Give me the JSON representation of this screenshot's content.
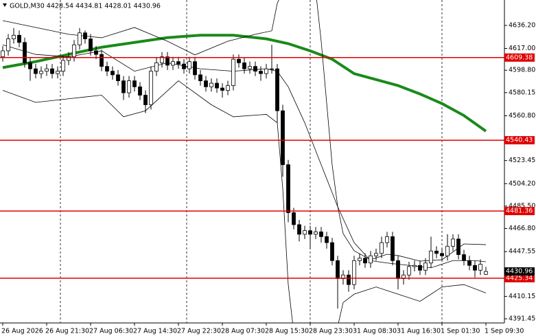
{
  "chart_data": {
    "type": "candlestick",
    "title": "GOLD,M30  4428.54 4434.81 4428.01 4430.96",
    "categories": [
      "26 Aug 2026",
      null,
      null,
      null,
      null,
      null,
      null,
      null,
      "26 Aug 21:30",
      null,
      null,
      null,
      null,
      null,
      null,
      null,
      "27 Aug 06:30",
      null,
      null,
      null,
      null,
      null,
      null,
      null,
      "27 Aug 14:30",
      null,
      null,
      null,
      null,
      null,
      null,
      null,
      "27 Aug 22:30",
      null,
      null,
      null,
      null,
      null,
      null,
      null,
      "28 Aug 07:30",
      null,
      null,
      null,
      null,
      null,
      null,
      null,
      "28 Aug 15:30",
      null,
      null,
      null,
      null,
      null,
      null,
      null,
      "28 Aug 23:30",
      null,
      null,
      null,
      null,
      null,
      null,
      null,
      "31 Aug 08:30",
      null,
      null,
      null,
      null,
      null,
      null,
      null,
      "31 Aug 16:30",
      null,
      null,
      null,
      null,
      null,
      null,
      null,
      "1 Sep 01:30",
      null,
      null,
      null,
      null,
      null,
      null,
      null,
      "1 Sep 09:30"
    ],
    "open": [
      4610,
      4615,
      4625,
      4628,
      4622,
      4605,
      4600,
      4596,
      4598,
      4600,
      4596,
      4598,
      4607,
      4610,
      4620,
      4630,
      4625,
      4615,
      4612,
      4602,
      4598,
      4595,
      4590,
      4580,
      4590,
      4585,
      4578,
      4570,
      4598,
      4605,
      4610,
      4603,
      4606,
      4604,
      4600,
      4606,
      4595,
      4590,
      4585,
      4588,
      4584,
      4582,
      4586,
      4608,
      4605,
      4600,
      4602,
      4598,
      4596,
      4600,
      4600,
      4565,
      4520,
      4480,
      4470,
      4462,
      4465,
      4462,
      4464,
      4460,
      4455,
      4440,
      4425,
      4428,
      4420,
      4440,
      4442,
      4438,
      4444,
      4446,
      4455,
      4460,
      4440,
      4425,
      4428,
      4435,
      4436,
      4432,
      4438,
      4448,
      4446,
      4444,
      4452,
      4458,
      4445,
      4440,
      4436,
      4432,
      4428.54
    ],
    "high": [
      4619,
      4629,
      4634,
      4632,
      4626,
      4609,
      4604,
      4602,
      4604,
      4604,
      4602,
      4611,
      4614,
      4624,
      4634,
      4632,
      4629,
      4619,
      4616,
      4606,
      4602,
      4599,
      4594,
      4594,
      4594,
      4589,
      4582,
      4602,
      4609,
      4614,
      4614,
      4610,
      4610,
      4608,
      4610,
      4610,
      4599,
      4594,
      4592,
      4592,
      4588,
      4590,
      4612,
      4612,
      4609,
      4606,
      4606,
      4602,
      4604,
      4620,
      4604,
      4570,
      4524,
      4484,
      4474,
      4469,
      4469,
      4468,
      4468,
      4464,
      4459,
      4444,
      4432,
      4432,
      4444,
      4446,
      4446,
      4448,
      4450,
      4460,
      4464,
      4464,
      4444,
      4432,
      4439,
      4440,
      4440,
      4442,
      4460,
      4452,
      4450,
      4462,
      4462,
      4462,
      4449,
      4444,
      4440,
      4441,
      4434.81
    ],
    "low": [
      4606,
      4611,
      4621,
      4618,
      4601,
      4590,
      4592,
      4592,
      4594,
      4592,
      4592,
      4594,
      4603,
      4606,
      4616,
      4621,
      4611,
      4608,
      4598,
      4594,
      4591,
      4586,
      4574,
      4576,
      4581,
      4574,
      4563,
      4566,
      4594,
      4601,
      4599,
      4599,
      4600,
      4596,
      4596,
      4591,
      4586,
      4581,
      4581,
      4580,
      4576,
      4578,
      4582,
      4601,
      4596,
      4596,
      4594,
      4590,
      4592,
      4596,
      4555,
      4510,
      4472,
      4466,
      4456,
      4458,
      4450,
      4458,
      4455,
      4450,
      4436,
      4400,
      4420,
      4414,
      4416,
      4436,
      4434,
      4434,
      4440,
      4442,
      4451,
      4436,
      4416,
      4420,
      4424,
      4431,
      4428,
      4428,
      4434,
      4442,
      4440,
      4440,
      4448,
      4441,
      4436,
      4432,
      4426,
      4428,
      4428.01
    ],
    "close": [
      4615,
      4625,
      4628,
      4622,
      4605,
      4600,
      4596,
      4598,
      4600,
      4596,
      4598,
      4607,
      4610,
      4620,
      4630,
      4625,
      4615,
      4612,
      4602,
      4598,
      4595,
      4590,
      4580,
      4590,
      4585,
      4578,
      4570,
      4598,
      4605,
      4610,
      4603,
      4606,
      4604,
      4600,
      4606,
      4595,
      4590,
      4585,
      4588,
      4584,
      4582,
      4586,
      4608,
      4605,
      4600,
      4602,
      4598,
      4596,
      4600,
      4600,
      4565,
      4520,
      4480,
      4470,
      4462,
      4465,
      4462,
      4464,
      4460,
      4455,
      4440,
      4425,
      4428,
      4420,
      4440,
      4442,
      4438,
      4444,
      4446,
      4455,
      4460,
      4440,
      4425,
      4428,
      4435,
      4436,
      4432,
      4438,
      4448,
      4446,
      4444,
      4452,
      4458,
      4445,
      4440,
      4436,
      4432,
      4437,
      4430.96
    ],
    "indicators": [
      {
        "color": "#1a8a1a",
        "width": 4,
        "x": [
          0,
          6,
          12,
          18,
          24,
          30,
          36,
          42,
          48,
          52,
          56,
          60,
          64,
          68,
          72,
          76,
          80,
          84,
          88
        ],
        "values": [
          4601,
          4606,
          4612,
          4618,
          4622,
          4626,
          4628,
          4628,
          4625,
          4621,
          4615,
          4608,
          4596,
          4591,
          4586,
          4579,
          4571,
          4561,
          4548
        ]
      },
      {
        "color": "#000000",
        "width": 0.8,
        "x": [
          0,
          12,
          18,
          24,
          30,
          35,
          41,
          46,
          49,
          50,
          51,
          null,
          57,
          58,
          59,
          60,
          61,
          62,
          64,
          67,
          70,
          72,
          76,
          80,
          84,
          88
        ],
        "values": [
          4640.2,
          4628.8,
          4625.9,
          4634.5,
          4623,
          4611.6,
          4623,
          4628.8,
          4631.7,
          4654.6,
          4665,
          null,
          4665,
          4623,
          4571.4,
          4519.8,
          4485.4,
          4462.5,
          4448.2,
          4440.7,
          4445.3,
          4444.2,
          4439.6,
          4440.7,
          4453.9,
          4453.3
        ]
      },
      {
        "color": "#000000",
        "width": 0.8,
        "x": [
          0,
          6,
          12,
          18,
          24,
          30,
          36,
          42,
          48,
          50,
          52,
          55,
          58,
          61,
          64,
          67,
          70,
          74,
          78,
          82,
          86,
          88
        ],
        "values": [
          4620,
          4612,
          4610,
          4615,
          4598,
          4605,
          4600,
          4598,
          4600,
          4598,
          4585,
          4555,
          4520,
          4485,
          4455,
          4440,
          4438,
          4436,
          4434,
          4440,
          4440,
          4439
        ]
      },
      {
        "color": "#000000",
        "width": 0.8,
        "x": [
          0,
          6,
          12,
          18,
          22,
          26,
          32,
          38,
          42,
          48,
          50,
          51,
          52,
          53,
          null,
          61,
          62,
          64,
          68,
          72,
          76,
          80,
          84,
          88
        ],
        "values": [
          4582,
          4572,
          4575,
          4578,
          4560,
          4565,
          4590,
          4570,
          4560,
          4562,
          4555,
          4500,
          4420,
          4380,
          null,
          4385,
          4405,
          4412,
          4418,
          4412,
          4406,
          4418,
          4420,
          4413
        ]
      }
    ],
    "levels": [
      4609.38,
      4540.43,
      4481.36,
      4425.34
    ],
    "level_color": "#e00000",
    "last_price": 4430.96,
    "ylim": [
      4388.0,
      4657.4
    ],
    "yticks": [
      {
        "value": 4636.2,
        "label": "4636.20"
      },
      {
        "value": 4617,
        "label": "4617.00"
      },
      {
        "value": 4598.8,
        "label": "4598.80"
      },
      4580.15,
      {
        "value": 4560.8,
        "label": "4560.80"
      },
      4523.45,
      {
        "value": 4504.2,
        "label": "4504.20"
      },
      {
        "value": 4485.5,
        "label": "4485.50"
      },
      {
        "value": 4466.8,
        "label": "4466.80"
      },
      4447.55,
      4410.15,
      4391.45
    ]
  }
}
